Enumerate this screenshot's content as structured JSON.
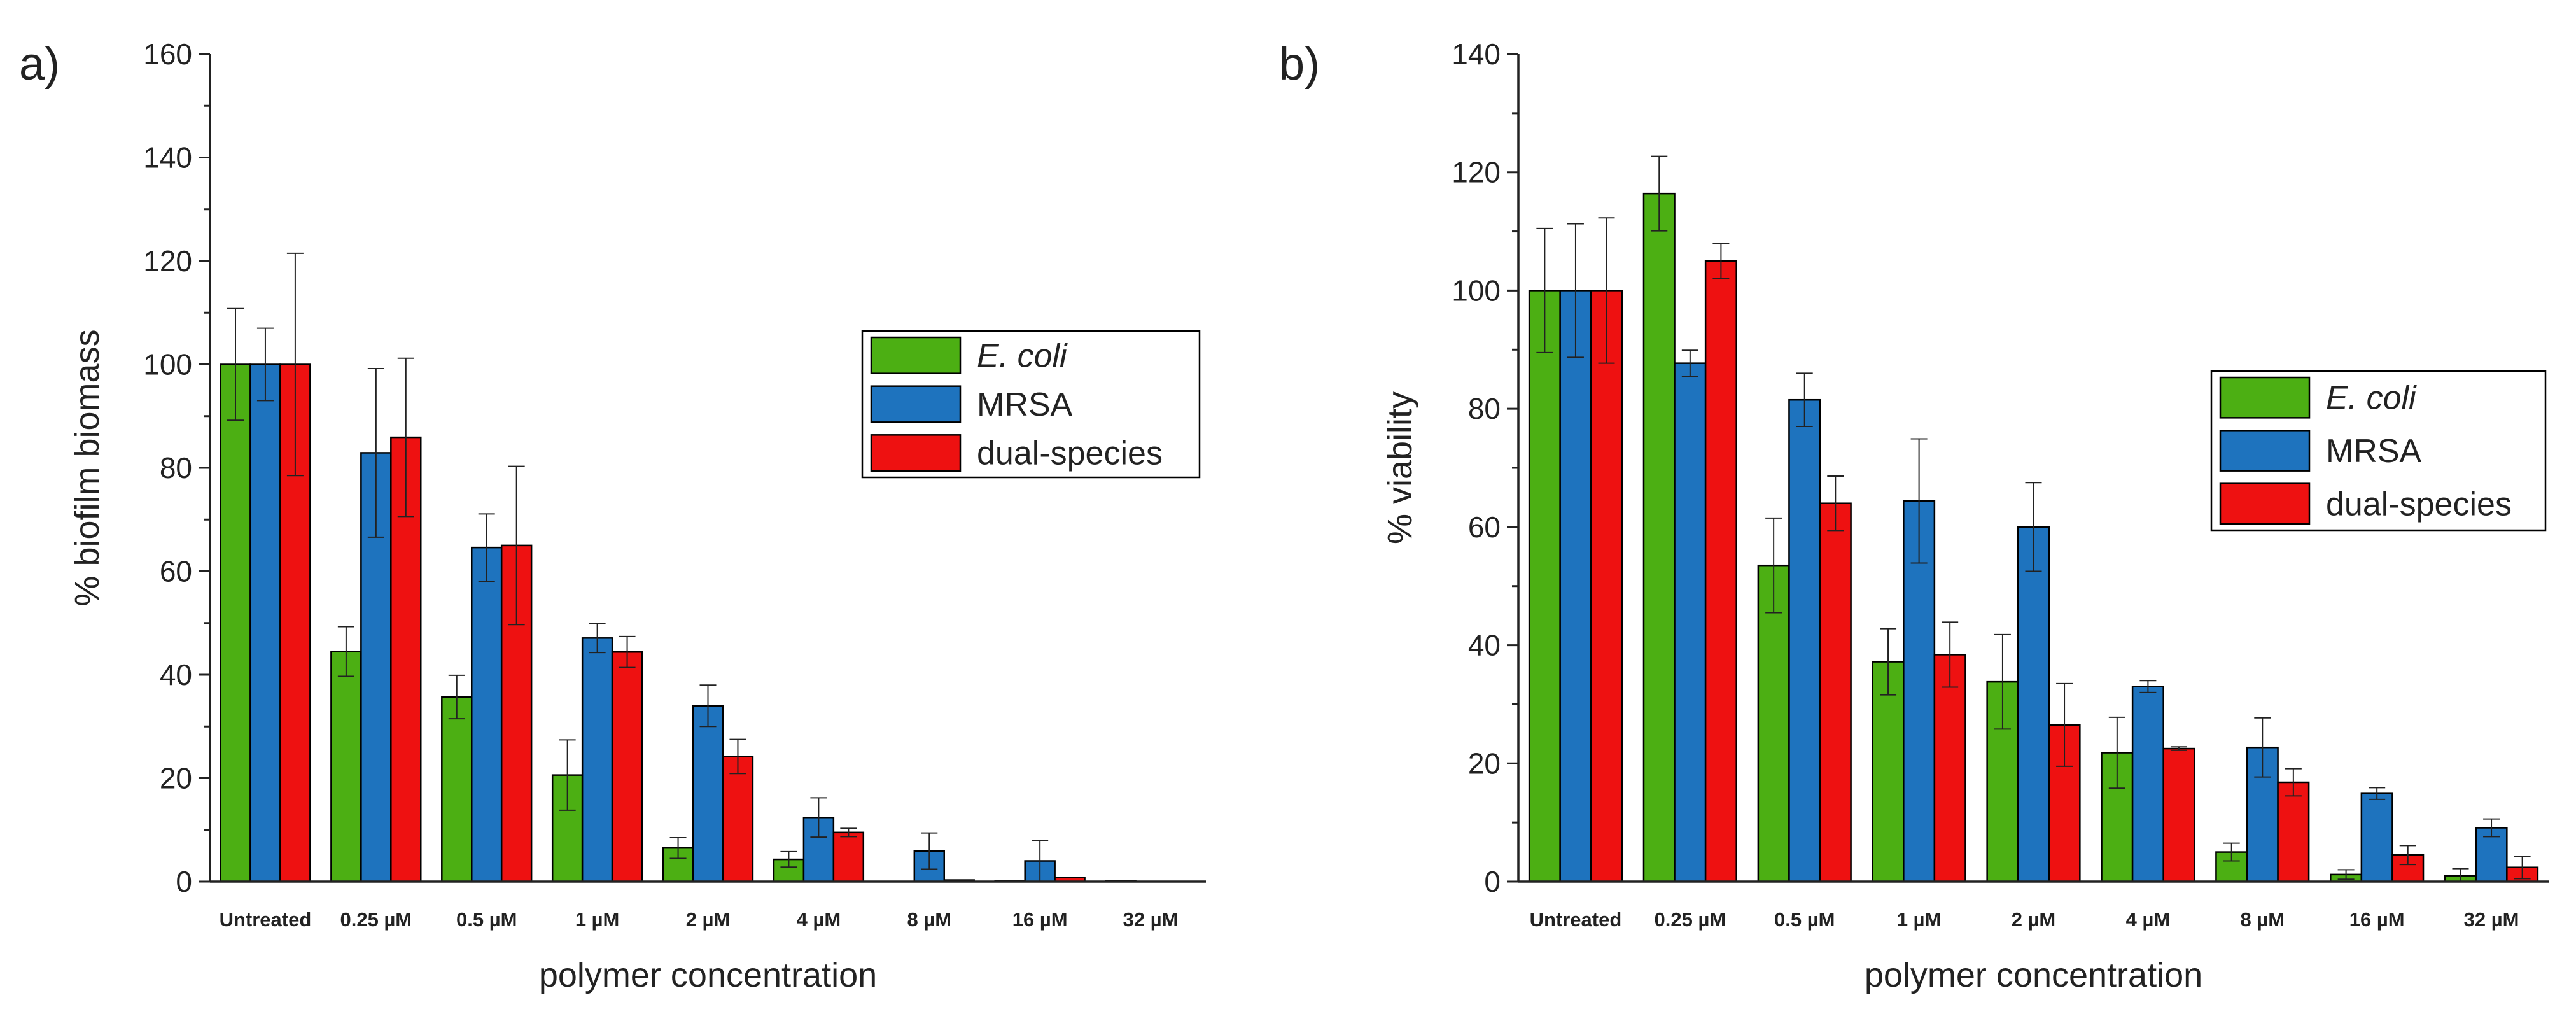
{
  "colors": {
    "ecoli": "#4CAF13",
    "mrsa": "#1E73BE",
    "dual": "#EE1111",
    "axis": "#222222"
  },
  "chart_data": [
    {
      "type": "bar",
      "panel_label": "a)",
      "title": "",
      "xlabel": "polymer concentration",
      "ylabel": "% biofilm biomass",
      "ylim": [
        0,
        160
      ],
      "yticks": [
        "0",
        "20",
        "40",
        "60",
        "80",
        "100",
        "120",
        "140",
        "160"
      ],
      "categories": [
        "Untreated",
        "0.25 µM",
        "0.5 µM",
        "1 µM",
        "2 µM",
        "4 µM",
        "8 µM",
        "16 µM",
        "32 µM"
      ],
      "legend_position": "center-right",
      "series": [
        {
          "name": "E. coli",
          "italic": true,
          "color_key": "ecoli",
          "values": [
            100,
            44.5,
            35.7,
            20.6,
            6.5,
            4.3,
            0,
            0.2,
            0.2
          ],
          "errors": [
            10.8,
            4.8,
            4.2,
            6.8,
            2.0,
            1.5,
            0,
            0,
            0
          ]
        },
        {
          "name": "MRSA",
          "italic": false,
          "color_key": "mrsa",
          "values": [
            100,
            82.9,
            64.6,
            47.1,
            34.0,
            12.4,
            5.9,
            4.0,
            0
          ],
          "errors": [
            7.0,
            16.3,
            6.5,
            2.8,
            4.0,
            3.8,
            3.5,
            4.0,
            0
          ]
        },
        {
          "name": "dual-species",
          "italic": false,
          "color_key": "dual",
          "values": [
            100,
            85.9,
            65.0,
            44.4,
            24.2,
            9.5,
            0.3,
            0.8,
            0
          ],
          "errors": [
            21.5,
            15.3,
            15.3,
            3.0,
            3.3,
            0.8,
            0,
            0,
            0
          ]
        }
      ]
    },
    {
      "type": "bar",
      "panel_label": "b)",
      "title": "",
      "xlabel": "polymer concentration",
      "ylabel": "% viability",
      "ylim": [
        0,
        140
      ],
      "yticks": [
        "0",
        "20",
        "40",
        "60",
        "80",
        "100",
        "120",
        "140"
      ],
      "categories": [
        "Untreated",
        "0.25 µM",
        "0.5 µM",
        "1 µM",
        "2 µM",
        "4 µM",
        "8 µM",
        "16 µM",
        "32 µM"
      ],
      "legend_position": "center-right",
      "series": [
        {
          "name": "E. coli",
          "italic": true,
          "color_key": "ecoli",
          "values": [
            100,
            116.4,
            53.5,
            37.2,
            33.8,
            21.8,
            5.0,
            1.2,
            1.0
          ],
          "errors": [
            10.5,
            6.3,
            8.0,
            5.6,
            8.0,
            6.0,
            1.5,
            0.8,
            1.2
          ]
        },
        {
          "name": "MRSA",
          "italic": false,
          "color_key": "mrsa",
          "values": [
            100,
            87.7,
            81.5,
            64.4,
            60.0,
            33.0,
            22.7,
            14.9,
            9.1
          ],
          "errors": [
            11.3,
            2.2,
            4.5,
            10.5,
            7.5,
            1.0,
            5.0,
            1.0,
            1.5
          ]
        },
        {
          "name": "dual-species",
          "italic": false,
          "color_key": "dual",
          "values": [
            100,
            105.0,
            64.0,
            38.4,
            26.5,
            22.5,
            16.8,
            4.5,
            2.4
          ],
          "errors": [
            12.3,
            3.0,
            4.6,
            5.5,
            7.0,
            0.3,
            2.3,
            1.6,
            1.9
          ]
        }
      ]
    }
  ]
}
